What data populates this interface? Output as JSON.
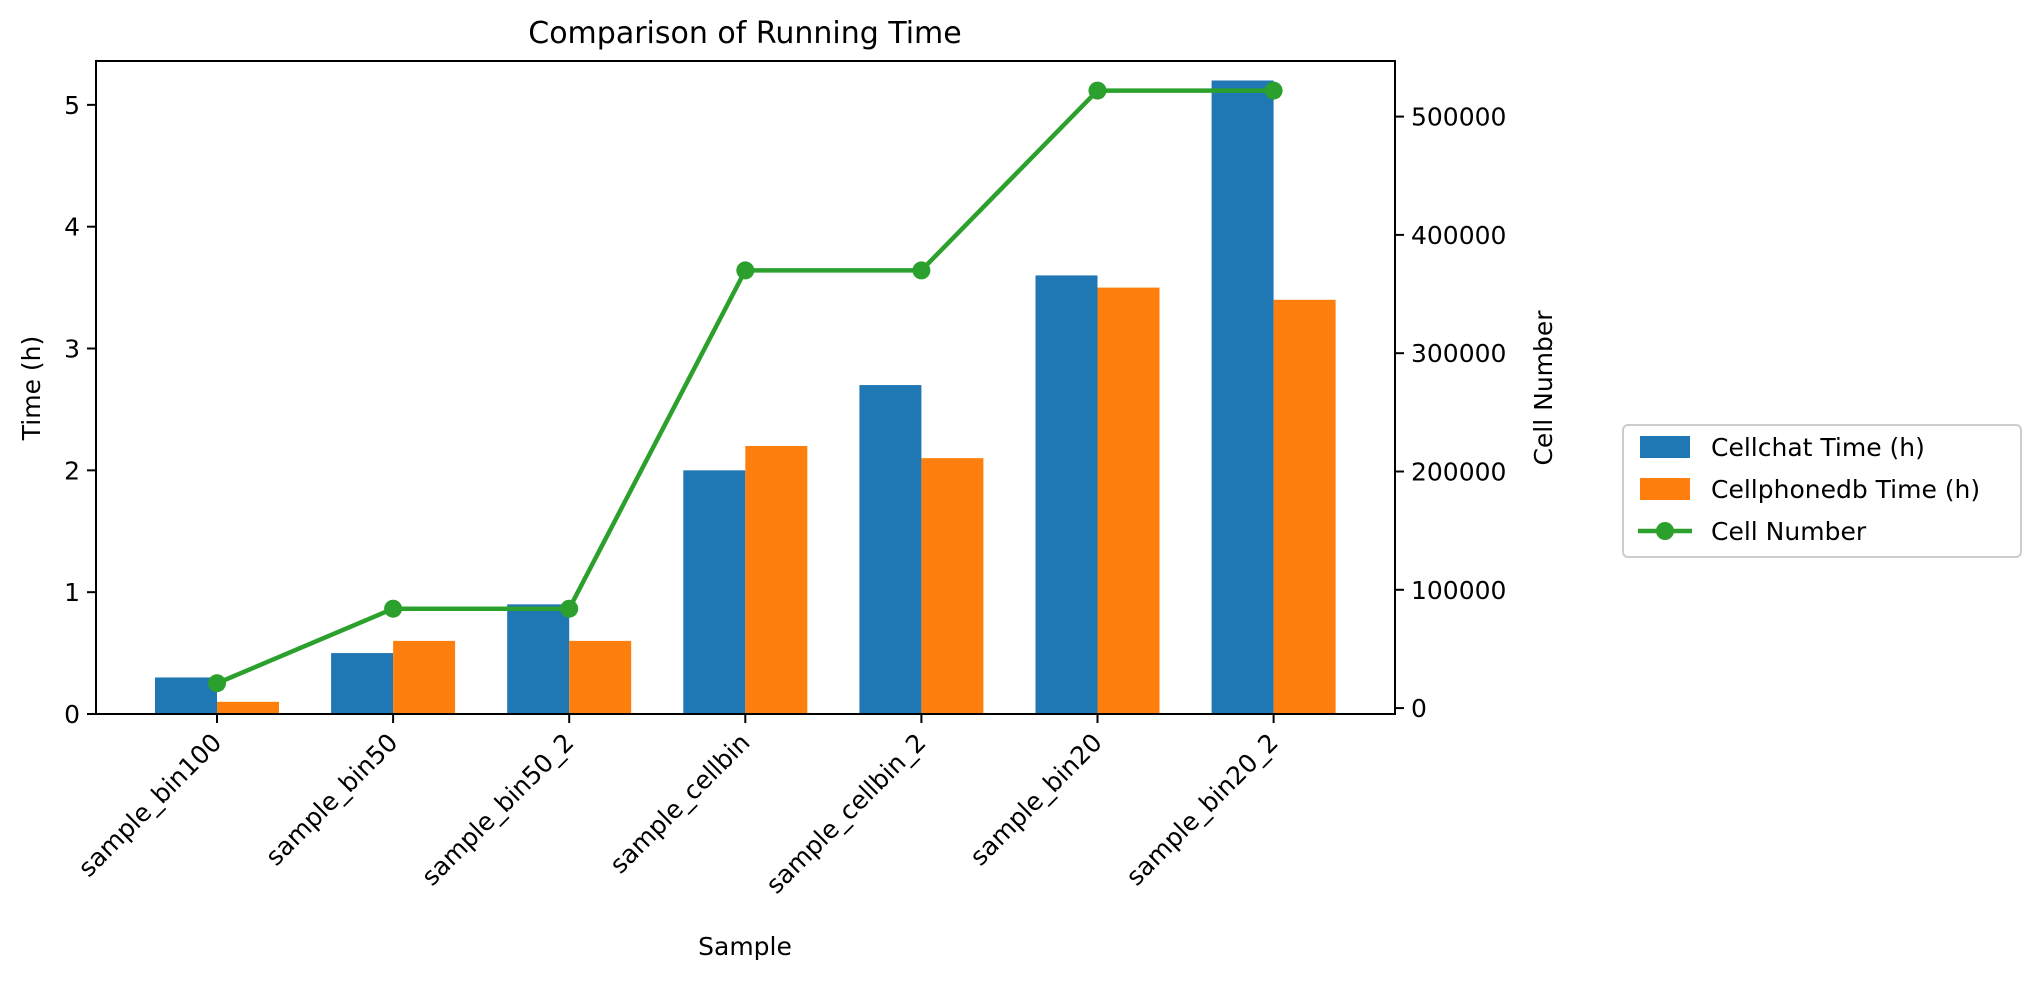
{
  "chart_data": {
    "type": "bar",
    "title": "Comparison of Running Time",
    "xlabel": "Sample",
    "ylabel": "Time (h)",
    "y2label": "Cell Number",
    "categories": [
      "sample_bin100",
      "sample_bin50",
      "sample_bin50_2",
      "sample_cellbin",
      "sample_cellbin_2",
      "sample_bin20",
      "sample_bin20_2"
    ],
    "series": [
      {
        "name": "Cellchat Time (h)",
        "type": "bar",
        "axis": "left",
        "color": "#1f77b4",
        "values": [
          0.3,
          0.5,
          0.9,
          2.0,
          2.7,
          3.6,
          5.2
        ]
      },
      {
        "name": "Cellphonedb Time (h)",
        "type": "bar",
        "axis": "left",
        "color": "#ff7f0e",
        "values": [
          0.1,
          0.6,
          0.6,
          2.2,
          2.1,
          3.5,
          3.4
        ]
      },
      {
        "name": "Cell Number",
        "type": "line",
        "axis": "right",
        "color": "#2ca02c",
        "marker": "circle",
        "values": [
          21000,
          84000,
          84000,
          370000,
          370000,
          522000,
          522000
        ]
      }
    ],
    "ylim": [
      0,
      5.36
    ],
    "y2lim": [
      -5000,
      547000
    ],
    "yticks": [
      "0",
      "1",
      "2",
      "3",
      "4",
      "5"
    ],
    "y2ticks": [
      "0",
      "100000",
      "200000",
      "300000",
      "400000",
      "500000"
    ],
    "grid": false,
    "legend_position": "outside-right"
  }
}
